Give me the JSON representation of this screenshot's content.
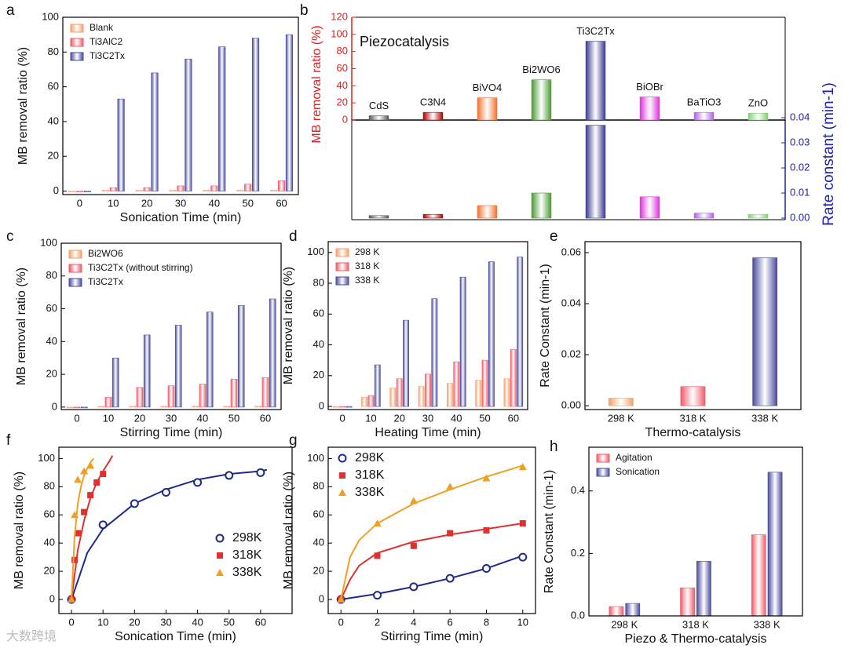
{
  "chart_data": [
    {
      "type": "bar",
      "label": "a",
      "xlabel": "Sonication Time (min)",
      "ylabel": "MB removal ratio (%)",
      "categories": [
        "0",
        "10",
        "20",
        "30",
        "40",
        "50",
        "60"
      ],
      "series": [
        {
          "name": "Blank",
          "color": "#f4a06a",
          "values": [
            0,
            0.5,
            0.5,
            0.5,
            0.5,
            0.5,
            0.5
          ]
        },
        {
          "name": "Ti3AlC2",
          "color": "#ef5a68",
          "values": [
            0,
            2,
            2,
            3,
            3,
            4,
            6
          ]
        },
        {
          "name": "Ti3C2Tx",
          "color": "#4a4a9e",
          "values": [
            0,
            53,
            68,
            76,
            83,
            88,
            90
          ]
        }
      ],
      "ylim": [
        -2,
        100
      ],
      "yticks": [
        0,
        20,
        40,
        60,
        80,
        100
      ],
      "legend": "upper left"
    },
    {
      "type": "mirror",
      "label": "b",
      "title": "Piezocatalysis",
      "ylabel": "MB removal ratio (%)",
      "y2label": "Rate constant (min-1)",
      "categories": [
        "CdS",
        "C3N4",
        "BiVO4",
        "Bi2WO6",
        "Ti3C2Tx",
        "BiOBr",
        "BaTiO3",
        "ZnO"
      ],
      "colors": [
        "#555555",
        "#b00000",
        "#f07030",
        "#4a9a30",
        "#3a3a90",
        "#e030e0",
        "#b060e0",
        "#80d070"
      ],
      "series": [
        {
          "values": [
            5,
            9,
            26,
            47,
            92,
            27,
            9,
            8
          ]
        },
        {
          "axis": "y2",
          "values": [
            0.001,
            0.0015,
            0.005,
            0.01,
            0.037,
            0.0085,
            0.002,
            0.0015
          ]
        }
      ],
      "ylim": [
        0,
        120
      ],
      "yticks": [
        0,
        20,
        40,
        60,
        80,
        100,
        120
      ],
      "y2lim": [
        0,
        0.04
      ],
      "y2ticks": [
        {
          "value": 0,
          "label": "0.00"
        },
        0.01,
        0.02,
        0.03,
        0.04
      ],
      "ycolor": "#e02020",
      "y2color": "#2020b0"
    },
    {
      "type": "bar",
      "label": "c",
      "xlabel": "Stirring Time (min)",
      "ylabel": "MB removal ratio (%)",
      "categories": [
        "0",
        "10",
        "20",
        "30",
        "40",
        "50",
        "60"
      ],
      "series": [
        {
          "name": "Bi2WO6",
          "color": "#f4a06a",
          "values": [
            0,
            0.5,
            0.5,
            0.5,
            0.5,
            0.5,
            0.5
          ]
        },
        {
          "name": "Ti3C2Tx (without stirring)",
          "color": "#ef5a68",
          "values": [
            0,
            6,
            12,
            13,
            14,
            17,
            18
          ]
        },
        {
          "name": "Ti3C2Tx",
          "color": "#4a4a9e",
          "values": [
            0,
            30,
            44,
            50,
            58,
            62,
            66
          ]
        }
      ],
      "ylim": [
        -1.5,
        100
      ],
      "yticks": [
        0,
        20,
        40,
        60,
        80,
        100
      ],
      "legend": "upper left"
    },
    {
      "type": "bar",
      "label": "d",
      "xlabel": "Heating Time (min)",
      "ylabel": "MB removal ratio (%)",
      "categories": [
        "0",
        "10",
        "20",
        "30",
        "40",
        "50",
        "60"
      ],
      "series": [
        {
          "name": "298 K",
          "color": "#f4a06a",
          "values": [
            0,
            6,
            12,
            13,
            15,
            17,
            18
          ]
        },
        {
          "name": "318 K",
          "color": "#ef5a68",
          "values": [
            0,
            7,
            18,
            21,
            29,
            30,
            37
          ]
        },
        {
          "name": "338 K",
          "color": "#4a4a9e",
          "values": [
            0,
            27,
            56,
            70,
            84,
            94,
            97
          ]
        }
      ],
      "ylim": [
        -2,
        107
      ],
      "yticks": [
        0,
        20,
        40,
        60,
        80,
        100
      ],
      "legend": "upper left"
    },
    {
      "type": "bar",
      "label": "e",
      "xlabel": "Thermo-catalysis",
      "ylabel": "Rate Constant (min-1)",
      "categories": [
        "298 K",
        "318 K",
        "338 K"
      ],
      "series": [
        {
          "colors": [
            "#f4a06a",
            "#ef5a68",
            "#4a4a9e"
          ],
          "values": [
            0.003,
            0.0075,
            0.058
          ]
        }
      ],
      "ylim": [
        -0.0015,
        0.0643
      ],
      "yticks": [
        {
          "value": 0,
          "label": "0.00"
        },
        0.02,
        0.04,
        0.06
      ]
    },
    {
      "type": "scatter",
      "label": "f",
      "xlabel": "Sonication Time (min)",
      "ylabel": "MB removal ratio (%)",
      "series": [
        {
          "name": "298K",
          "color": "#1f2a8a",
          "marker": "circle",
          "x": [
            0,
            10,
            20,
            30,
            40,
            50,
            60
          ],
          "values": [
            0,
            53,
            68,
            76,
            83,
            88,
            90
          ],
          "fit_x": [
            0,
            5,
            10,
            20,
            30,
            40,
            50,
            60,
            62
          ],
          "fit_y": [
            0,
            33,
            50,
            68,
            78,
            85,
            89,
            91,
            92
          ]
        },
        {
          "name": "318K",
          "color": "#e03030",
          "marker": "square",
          "x": [
            0,
            1,
            2,
            4,
            6,
            8,
            10
          ],
          "values": [
            0,
            28,
            47,
            62,
            74,
            83,
            89
          ],
          "fit_x": [
            0,
            2,
            4,
            6,
            8,
            10,
            12,
            13
          ],
          "fit_y": [
            0,
            35,
            56,
            72,
            83,
            91,
            98,
            102
          ]
        },
        {
          "name": "338K",
          "color": "#f0a020",
          "marker": "triangle",
          "x": [
            0,
            1,
            2,
            4,
            6
          ],
          "values": [
            0,
            60,
            85,
            91,
            95
          ],
          "fit_x": [
            0,
            1,
            2,
            3,
            4,
            5,
            6,
            7
          ],
          "fit_y": [
            0,
            45,
            68,
            80,
            88,
            93,
            97,
            100
          ]
        }
      ],
      "xlim": [
        -4,
        70
      ],
      "xticks": [
        0,
        10,
        20,
        30,
        40,
        50,
        60
      ],
      "ylim": [
        -10,
        108
      ],
      "yticks": [
        0,
        20,
        40,
        60,
        80,
        100
      ],
      "legend": "center right"
    },
    {
      "type": "scatter",
      "label": "g",
      "xlabel": "Stirring Time (min)",
      "ylabel": "MB removal ratio (%)",
      "series": [
        {
          "name": "298K",
          "color": "#1f2a8a",
          "marker": "circle",
          "x": [
            0,
            2,
            4,
            6,
            8,
            10
          ],
          "values": [
            0,
            3,
            9,
            15,
            22,
            30
          ],
          "fit_x": [
            0,
            2,
            4,
            6,
            8,
            10
          ],
          "fit_y": [
            0,
            4,
            9,
            15,
            22,
            31
          ]
        },
        {
          "name": "318K",
          "color": "#e03030",
          "marker": "square",
          "x": [
            0,
            2,
            4,
            6,
            8,
            10
          ],
          "values": [
            0,
            31,
            38,
            47,
            49,
            54
          ],
          "fit_x": [
            0,
            0.5,
            1,
            2,
            4,
            6,
            8,
            10
          ],
          "fit_y": [
            0,
            14,
            24,
            33,
            41,
            46,
            50,
            54
          ]
        },
        {
          "name": "338K",
          "color": "#f0a020",
          "marker": "triangle",
          "x": [
            0,
            2,
            4,
            6,
            8,
            10
          ],
          "values": [
            0,
            54,
            70,
            80,
            86,
            94
          ],
          "fit_x": [
            0,
            0.5,
            1,
            2,
            4,
            6,
            8,
            10
          ],
          "fit_y": [
            0,
            30,
            42,
            54,
            68,
            78,
            87,
            95
          ]
        }
      ],
      "xlim": [
        -0.7,
        10.7
      ],
      "xticks": [
        0,
        2,
        4,
        6,
        8,
        10
      ],
      "ylim": [
        -10,
        108
      ],
      "yticks": [
        0,
        20,
        40,
        60,
        80,
        100
      ],
      "legend": "upper left"
    },
    {
      "type": "bar",
      "label": "h",
      "xlabel": "Piezo & Thermo-catalysis",
      "ylabel": "Rate Constant (min-1)",
      "categories": [
        "298 K",
        "318 K",
        "338 K"
      ],
      "series": [
        {
          "name": "Agitation",
          "color": "#ef5a68",
          "values": [
            0.03,
            0.09,
            0.26
          ]
        },
        {
          "name": "Sonication",
          "color": "#4a4a9e",
          "values": [
            0.04,
            0.175,
            0.46
          ]
        }
      ],
      "ylim": [
        0,
        0.54
      ],
      "yticks": [
        {
          "value": 0,
          "label": "0.0"
        },
        0.2,
        0.4
      ],
      "legend": "upper left"
    }
  ],
  "watermark": "大数跨境"
}
